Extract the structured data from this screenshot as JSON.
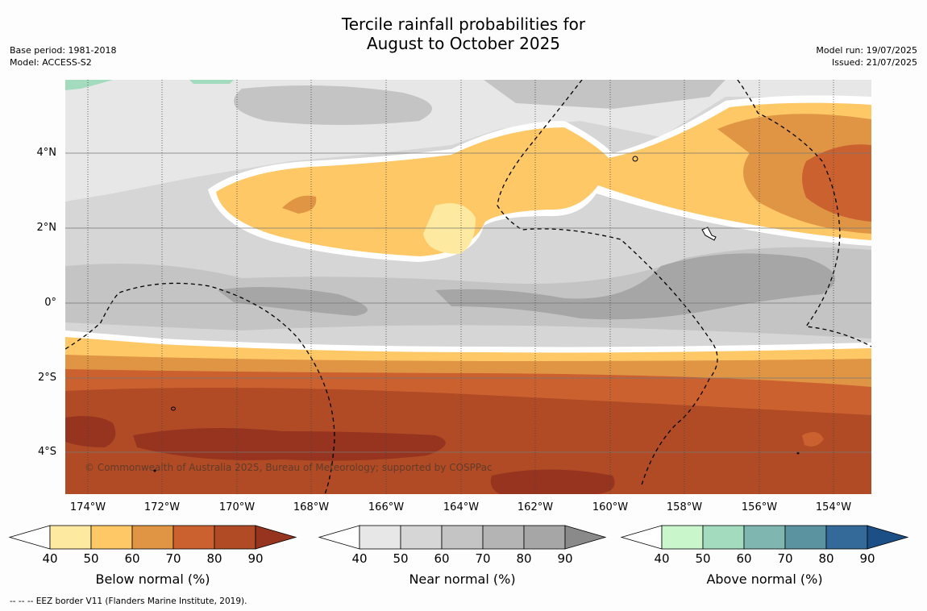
{
  "title": {
    "line1": "Tercile rainfall probabilities for",
    "line2": "August to October 2025"
  },
  "meta_left": {
    "base_period": "Base period: 1981-2018",
    "model": "Model: ACCESS-S2"
  },
  "meta_right": {
    "model_run": "Model run: 19/07/2025",
    "issued": "Issued: 21/07/2025"
  },
  "map": {
    "copyright": "© Commonwealth of Australia 2025, Bureau of Meteorology; supported by COSPPac",
    "lat_labels": [
      "4°N",
      "2°N",
      "0°",
      "2°S",
      "4°S"
    ],
    "lon_labels": [
      "174°W",
      "172°W",
      "170°W",
      "168°W",
      "166°W",
      "164°W",
      "162°W",
      "160°W",
      "158°W",
      "156°W",
      "154°W"
    ]
  },
  "colorbars": [
    {
      "label": "Below normal (%)",
      "ticks": [
        "40",
        "50",
        "60",
        "70",
        "80",
        "90"
      ],
      "colors": [
        "#ffffff",
        "#fdeaa0",
        "#fdc865",
        "#e09544",
        "#cc6130",
        "#b04b25",
        "#963420"
      ]
    },
    {
      "label": "Near normal (%)",
      "ticks": [
        "40",
        "50",
        "60",
        "70",
        "80",
        "90"
      ],
      "colors": [
        "#ffffff",
        "#e7e7e7",
        "#d6d6d6",
        "#c4c4c4",
        "#b4b4b4",
        "#a6a6a6",
        "#8a8a8a"
      ]
    },
    {
      "label": "Above normal (%)",
      "ticks": [
        "40",
        "50",
        "60",
        "70",
        "80",
        "90"
      ],
      "colors": [
        "#ffffff",
        "#c9f7cb",
        "#a2dbbd",
        "#7fb7b0",
        "#5c93a0",
        "#336a9a",
        "#1b4f86"
      ]
    }
  ],
  "footer": "--  --  -- EEZ border V11 (Flanders Marine Institute, 2019)."
}
